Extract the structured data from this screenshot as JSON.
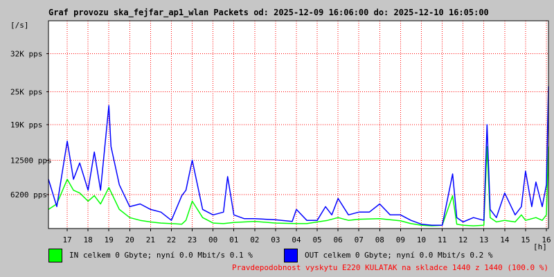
{
  "chart_data": {
    "type": "area",
    "title": "Graf provozu ska_fejfar_ap1_wlan Packets od: 2025-12-09 16:06:00 do: 2025-12-10 16:05:00",
    "ylabel": "[/s]",
    "xlabel": "[h]",
    "ylim": [
      0,
      38000
    ],
    "y_ticks": [
      {
        "label": "6200 pps",
        "value": 6200
      },
      {
        "label": "12500 pps",
        "value": 12500
      },
      {
        "label": "19K pps",
        "value": 19000
      },
      {
        "label": "25K pps",
        "value": 25000
      },
      {
        "label": "32K pps",
        "value": 32000
      }
    ],
    "x_range_hours": [
      16.1,
      40.1
    ],
    "x_ticks": [
      {
        "label": "17",
        "hour": 17
      },
      {
        "label": "18",
        "hour": 18
      },
      {
        "label": "19",
        "hour": 19
      },
      {
        "label": "20",
        "hour": 20
      },
      {
        "label": "21",
        "hour": 21
      },
      {
        "label": "22",
        "hour": 22
      },
      {
        "label": "23",
        "hour": 23
      },
      {
        "label": "00",
        "hour": 24
      },
      {
        "label": "01",
        "hour": 25
      },
      {
        "label": "02",
        "hour": 26
      },
      {
        "label": "03",
        "hour": 27
      },
      {
        "label": "04",
        "hour": 28
      },
      {
        "label": "05",
        "hour": 29
      },
      {
        "label": "06",
        "hour": 30
      },
      {
        "label": "07",
        "hour": 31
      },
      {
        "label": "08",
        "hour": 32
      },
      {
        "label": "09",
        "hour": 33
      },
      {
        "label": "10",
        "hour": 34
      },
      {
        "label": "11",
        "hour": 35
      },
      {
        "label": "12",
        "hour": 36
      },
      {
        "label": "13",
        "hour": 37
      },
      {
        "label": "14",
        "hour": 38
      },
      {
        "label": "15",
        "hour": 39
      },
      {
        "label": "16",
        "hour": 40
      }
    ],
    "grid": true,
    "series": [
      {
        "name": "IN",
        "color": "#00ff00",
        "x": [
          16.1,
          16.5,
          17.0,
          17.3,
          17.6,
          18.0,
          18.3,
          18.6,
          19.0,
          19.5,
          20.0,
          20.5,
          21.0,
          21.5,
          22.0,
          22.5,
          22.7,
          23.0,
          23.5,
          24.0,
          24.5,
          25.0,
          25.5,
          26.0,
          27.0,
          28.0,
          28.5,
          29.0,
          29.5,
          30.0,
          30.5,
          31.0,
          32.0,
          33.0,
          33.5,
          34.0,
          34.5,
          35.0,
          35.5,
          35.7,
          36.0,
          36.5,
          37.0,
          37.15,
          37.3,
          37.6,
          38.0,
          38.5,
          38.8,
          39.0,
          39.5,
          39.8,
          40.0,
          40.1
        ],
        "values": [
          3500,
          4500,
          9000,
          7000,
          6500,
          5000,
          6000,
          4500,
          7500,
          3500,
          2000,
          1500,
          1200,
          1000,
          900,
          800,
          1500,
          5000,
          2000,
          1000,
          900,
          1100,
          1200,
          1300,
          1000,
          900,
          900,
          1200,
          1500,
          2000,
          1500,
          1700,
          1800,
          1400,
          900,
          600,
          500,
          600,
          6000,
          800,
          600,
          500,
          600,
          15000,
          2000,
          1200,
          1500,
          1200,
          2500,
          1500,
          2000,
          1500,
          2500,
          15000
        ]
      },
      {
        "name": "OUT",
        "color": "#0000ff",
        "x": [
          16.1,
          16.5,
          17.0,
          17.3,
          17.6,
          18.0,
          18.3,
          18.6,
          19.0,
          19.1,
          19.5,
          20.0,
          20.5,
          21.0,
          21.5,
          22.0,
          22.5,
          22.7,
          23.0,
          23.5,
          24.0,
          24.5,
          24.7,
          25.0,
          25.5,
          26.0,
          27.0,
          27.8,
          28.0,
          28.5,
          29.0,
          29.4,
          29.7,
          30.0,
          30.5,
          31.0,
          31.5,
          32.0,
          32.5,
          33.0,
          33.5,
          34.0,
          34.5,
          35.0,
          35.5,
          35.7,
          36.0,
          36.5,
          37.0,
          37.15,
          37.3,
          37.6,
          38.0,
          38.5,
          38.8,
          39.0,
          39.3,
          39.5,
          39.8,
          40.0,
          40.1
        ],
        "values": [
          9000,
          4000,
          16000,
          9000,
          12000,
          7000,
          14000,
          7000,
          22500,
          15000,
          8000,
          4000,
          4500,
          3500,
          3000,
          1500,
          6000,
          7000,
          12500,
          3500,
          2500,
          3000,
          9500,
          2500,
          1800,
          1800,
          1600,
          1300,
          3500,
          1500,
          1500,
          4000,
          2500,
          5500,
          2500,
          3000,
          3000,
          4500,
          2500,
          2500,
          1500,
          800,
          600,
          600,
          10000,
          2000,
          1200,
          2000,
          1500,
          19000,
          3500,
          2000,
          6500,
          2500,
          4000,
          10500,
          4000,
          8500,
          4000,
          8000,
          26000
        ]
      }
    ]
  },
  "legend": {
    "in_text": "IN celkem 0 Gbyte; nyní   0.0 Mbit/s 0.1 %",
    "out_text": "OUT celkem 0 Gbyte; nyní   0.0 Mbit/s 0.2 %"
  },
  "footer_note": "Pravdepodobnost vyskytu E220 KULATAK na skladce 1440 z 1440 (100.0 %)",
  "colors": {
    "background": "#c6c6c6",
    "plot_background": "#ffffff",
    "grid": "#ff0000",
    "axis": "#000000",
    "in_series": "#00ff00",
    "out_series": "#0000ff",
    "note": "#ff0000"
  }
}
